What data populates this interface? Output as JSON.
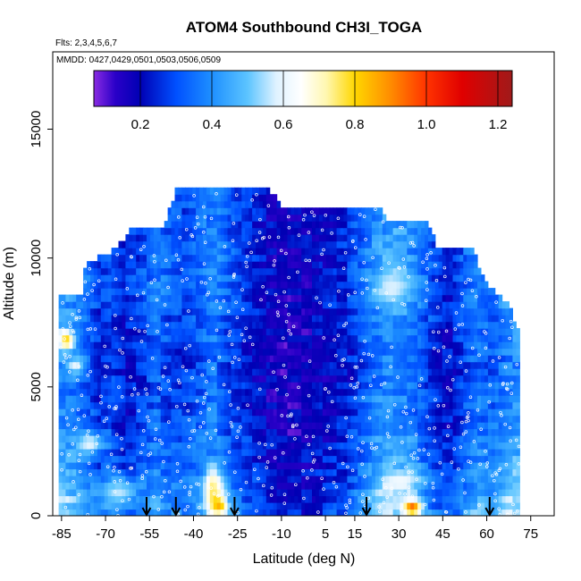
{
  "chart_data": {
    "type": "heatmap",
    "title": "ATOM4 Southbound CH3I_TOGA",
    "subtitle_flights": "Flts: 2,3,4,5,6,7",
    "subtitle_dates": "MMDD: 0427,0429,0501,0503,0506,0509",
    "xlabel": "Latitude (deg N)",
    "ylabel": "Altitude (m)",
    "xlim": [
      -88,
      83
    ],
    "ylim": [
      0,
      18000
    ],
    "x_ticks": [
      -85,
      -70,
      -55,
      -40,
      -25,
      -10,
      5,
      15,
      30,
      45,
      60,
      75
    ],
    "x_tick_labels": [
      "-85",
      "-70",
      "-55",
      "-40",
      "-25",
      "-10",
      "5",
      "15",
      "30",
      "45",
      "60",
      "75"
    ],
    "y_ticks": [
      0,
      5000,
      10000,
      15000
    ],
    "y_tick_labels": [
      "0",
      "5000",
      "10000",
      "15000"
    ],
    "colorbar": {
      "range": [
        0.07,
        1.24
      ],
      "ticks": [
        0.2,
        0.4,
        0.6,
        0.8,
        1.0,
        1.2
      ],
      "tick_labels": [
        "0.2",
        "0.4",
        "0.6",
        "0.8",
        "1.0",
        "1.2"
      ],
      "stops": [
        {
          "v": 0.07,
          "c": "#8a2be2"
        },
        {
          "v": 0.13,
          "c": "#2a00c8"
        },
        {
          "v": 0.2,
          "c": "#0000b4"
        },
        {
          "v": 0.3,
          "c": "#0050ff"
        },
        {
          "v": 0.4,
          "c": "#1e90ff"
        },
        {
          "v": 0.5,
          "c": "#5cc4ff"
        },
        {
          "v": 0.58,
          "c": "#dff2ff"
        },
        {
          "v": 0.65,
          "c": "#ffffff"
        },
        {
          "v": 0.72,
          "c": "#fff7b0"
        },
        {
          "v": 0.8,
          "c": "#ffd700"
        },
        {
          "v": 0.9,
          "c": "#ff8c00"
        },
        {
          "v": 1.0,
          "c": "#ff3300"
        },
        {
          "v": 1.1,
          "c": "#e00000"
        },
        {
          "v": 1.24,
          "c": "#a01a1a"
        }
      ]
    },
    "domain_lat": [
      -86,
      71
    ],
    "top_profile": [
      {
        "lat": -86,
        "alt": 8500
      },
      {
        "lat": -78,
        "alt": 8500
      },
      {
        "lat": -77,
        "alt": 9600
      },
      {
        "lat": -67,
        "alt": 10200
      },
      {
        "lat": -60,
        "alt": 11100
      },
      {
        "lat": -50,
        "alt": 11100
      },
      {
        "lat": -46,
        "alt": 12500
      },
      {
        "lat": -14,
        "alt": 12500
      },
      {
        "lat": -10,
        "alt": 11900
      },
      {
        "lat": 23,
        "alt": 11900
      },
      {
        "lat": 26,
        "alt": 11300
      },
      {
        "lat": 40,
        "alt": 11300
      },
      {
        "lat": 43,
        "alt": 10300
      },
      {
        "lat": 55,
        "alt": 10300
      },
      {
        "lat": 59,
        "alt": 9000
      },
      {
        "lat": 68,
        "alt": 8000
      },
      {
        "lat": 71,
        "alt": 7000
      }
    ],
    "columns": [
      {
        "lat": -86,
        "v": 0.45
      },
      {
        "lat": -80,
        "v": 0.42
      },
      {
        "lat": -76,
        "v": 0.36
      },
      {
        "lat": -72,
        "v": 0.28
      },
      {
        "lat": -68,
        "v": 0.32
      },
      {
        "lat": -63,
        "v": 0.26
      },
      {
        "lat": -58,
        "v": 0.3
      },
      {
        "lat": -53,
        "v": 0.38
      },
      {
        "lat": -48,
        "v": 0.33
      },
      {
        "lat": -43,
        "v": 0.31
      },
      {
        "lat": -38,
        "v": 0.36
      },
      {
        "lat": -33,
        "v": 0.42
      },
      {
        "lat": -28,
        "v": 0.33
      },
      {
        "lat": -23,
        "v": 0.28
      },
      {
        "lat": -18,
        "v": 0.24
      },
      {
        "lat": -13,
        "v": 0.2
      },
      {
        "lat": -8,
        "v": 0.18
      },
      {
        "lat": -3,
        "v": 0.19
      },
      {
        "lat": 2,
        "v": 0.21
      },
      {
        "lat": 7,
        "v": 0.24
      },
      {
        "lat": 12,
        "v": 0.26
      },
      {
        "lat": 17,
        "v": 0.34
      },
      {
        "lat": 22,
        "v": 0.42
      },
      {
        "lat": 27,
        "v": 0.46
      },
      {
        "lat": 32,
        "v": 0.44
      },
      {
        "lat": 37,
        "v": 0.38
      },
      {
        "lat": 42,
        "v": 0.3
      },
      {
        "lat": 47,
        "v": 0.24
      },
      {
        "lat": 52,
        "v": 0.33
      },
      {
        "lat": 57,
        "v": 0.4
      },
      {
        "lat": 62,
        "v": 0.36
      },
      {
        "lat": 67,
        "v": 0.44
      },
      {
        "lat": 71,
        "v": 0.46
      }
    ],
    "altitude_profile": [
      {
        "alt": 0,
        "f": 1.22
      },
      {
        "alt": 1000,
        "f": 1.12
      },
      {
        "alt": 2000,
        "f": 1.0
      },
      {
        "alt": 3500,
        "f": 0.9
      },
      {
        "alt": 5500,
        "f": 0.84
      },
      {
        "alt": 7500,
        "f": 0.9
      },
      {
        "alt": 9000,
        "f": 1.0
      },
      {
        "alt": 11000,
        "f": 0.95
      },
      {
        "alt": 12500,
        "f": 0.9
      }
    ],
    "hotspots": [
      {
        "lat": -84,
        "alt": 6700,
        "dlat": 3,
        "dalt": 450,
        "v": 0.8
      },
      {
        "lat": -81,
        "alt": 5700,
        "dlat": 3,
        "dalt": 350,
        "v": 0.6
      },
      {
        "lat": -34,
        "alt": 900,
        "dlat": 3,
        "dalt": 800,
        "v": 0.75
      },
      {
        "lat": -32,
        "alt": 300,
        "dlat": 3,
        "dalt": 400,
        "v": 0.85
      },
      {
        "lat": 34,
        "alt": 200,
        "dlat": 3,
        "dalt": 300,
        "v": 0.95
      },
      {
        "lat": 30,
        "alt": 1200,
        "dlat": 6,
        "dalt": 500,
        "v": 0.62
      },
      {
        "lat": -76,
        "alt": 2700,
        "dlat": 5,
        "dalt": 400,
        "v": 0.6
      },
      {
        "lat": 27,
        "alt": 8700,
        "dlat": 6,
        "dalt": 700,
        "v": 0.58
      },
      {
        "lat": -66,
        "alt": 800,
        "dlat": 6,
        "dalt": 600,
        "v": 0.56
      }
    ],
    "flight_markers_lat": [
      -56,
      -46,
      -26,
      19,
      61
    ]
  }
}
